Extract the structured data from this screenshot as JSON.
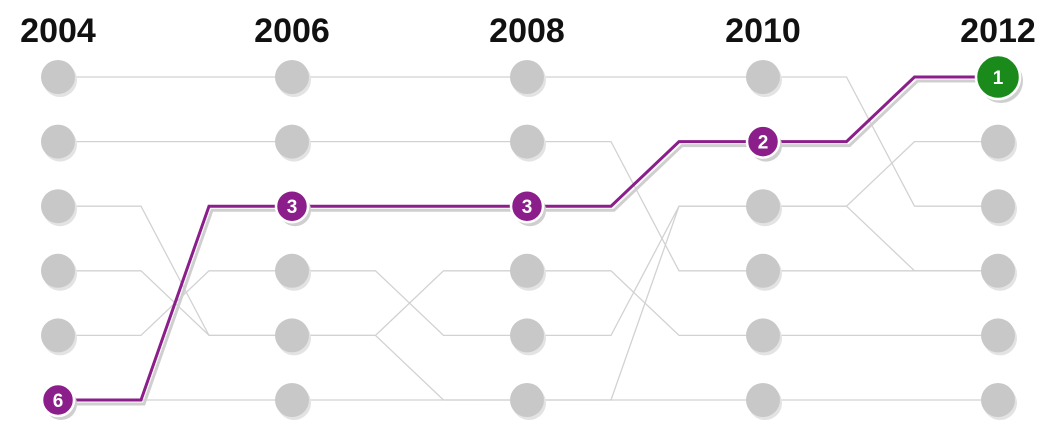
{
  "chart_data": {
    "type": "line",
    "subtype": "rank-bump",
    "years": [
      "2004",
      "2006",
      "2008",
      "2010",
      "2012"
    ],
    "rank_slots": [
      1,
      2,
      3,
      4,
      5,
      6
    ],
    "highlight": {
      "ranks": [
        6,
        3,
        3,
        2,
        1
      ],
      "labels": [
        "6",
        "3",
        "3",
        "2",
        "1"
      ],
      "color": "#8b1e8b",
      "final_color": "#1a8a1a"
    },
    "background_series": [
      {
        "ranks": [
          1,
          1,
          1,
          1,
          3
        ]
      },
      {
        "ranks": [
          2,
          2,
          2,
          4,
          4
        ]
      },
      {
        "ranks": [
          3,
          5,
          6,
          6,
          6
        ]
      },
      {
        "ranks": [
          4,
          5,
          4,
          5,
          5
        ]
      },
      {
        "ranks": [
          5,
          4,
          5,
          3,
          2
        ]
      },
      {
        "ranks": [
          6,
          6,
          6,
          3,
          4
        ]
      }
    ],
    "background_color": "#c8c8c8",
    "grid": false,
    "legend": "none"
  }
}
